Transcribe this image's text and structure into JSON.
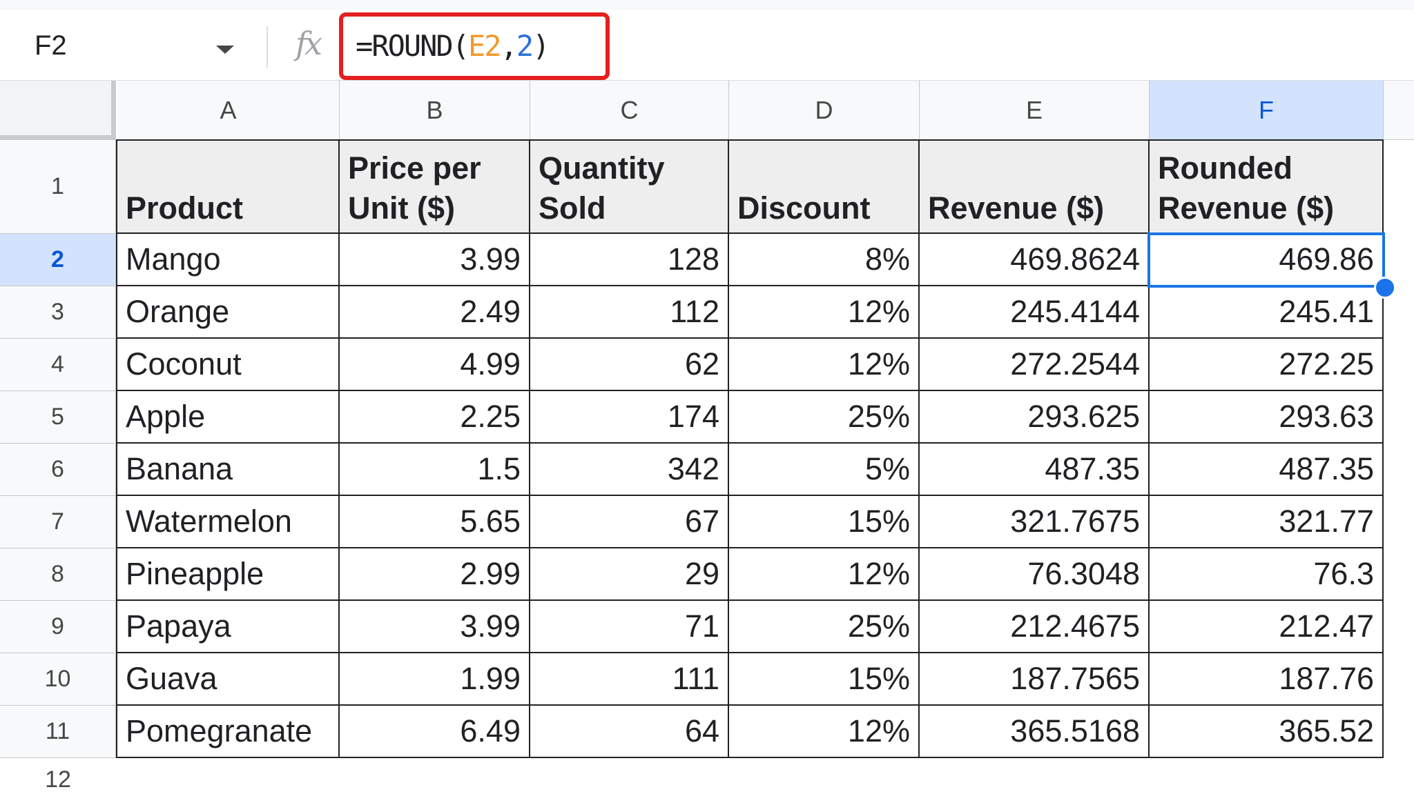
{
  "formula_bar": {
    "name_box": "F2",
    "fx_label": "fx",
    "formula_prefix": "=ROUND(",
    "formula_ref": "E2",
    "formula_sep": ",",
    "formula_arg": "2",
    "formula_suffix": ")"
  },
  "columns": [
    "A",
    "B",
    "C",
    "D",
    "E",
    "F"
  ],
  "selected_column": "F",
  "selected_row": 2,
  "headers": [
    "Product",
    "Price per Unit ($)",
    "Quantity Sold",
    "Discount",
    "Revenue ($)",
    "Rounded Revenue ($)"
  ],
  "rows": [
    {
      "num": "2",
      "cells": [
        "Mango",
        "3.99",
        "128",
        "8%",
        "469.8624",
        "469.86"
      ]
    },
    {
      "num": "3",
      "cells": [
        "Orange",
        "2.49",
        "112",
        "12%",
        "245.4144",
        "245.41"
      ]
    },
    {
      "num": "4",
      "cells": [
        "Coconut",
        "4.99",
        "62",
        "12%",
        "272.2544",
        "272.25"
      ]
    },
    {
      "num": "5",
      "cells": [
        "Apple",
        "2.25",
        "174",
        "25%",
        "293.625",
        "293.63"
      ]
    },
    {
      "num": "6",
      "cells": [
        "Banana",
        "1.5",
        "342",
        "5%",
        "487.35",
        "487.35"
      ]
    },
    {
      "num": "7",
      "cells": [
        "Watermelon",
        "5.65",
        "67",
        "15%",
        "321.7675",
        "321.77"
      ]
    },
    {
      "num": "8",
      "cells": [
        "Pineapple",
        "2.99",
        "29",
        "12%",
        "76.3048",
        "76.3"
      ]
    },
    {
      "num": "9",
      "cells": [
        "Papaya",
        "3.99",
        "71",
        "25%",
        "212.4675",
        "212.47"
      ]
    },
    {
      "num": "10",
      "cells": [
        "Guava",
        "1.99",
        "111",
        "15%",
        "187.7565",
        "187.76"
      ]
    },
    {
      "num": "11",
      "cells": [
        "Pomegranate",
        "6.49",
        "64",
        "12%",
        "365.5168",
        "365.52"
      ]
    }
  ],
  "row_numbers": [
    "1",
    "2",
    "3",
    "4",
    "5",
    "6",
    "7",
    "8",
    "9",
    "10",
    "11",
    "12"
  ],
  "colors": {
    "selection": "#1a73e8",
    "highlight_box": "#e41f1f",
    "ref_orange": "#f19a2c",
    "ref_blue": "#2a6fd9"
  }
}
